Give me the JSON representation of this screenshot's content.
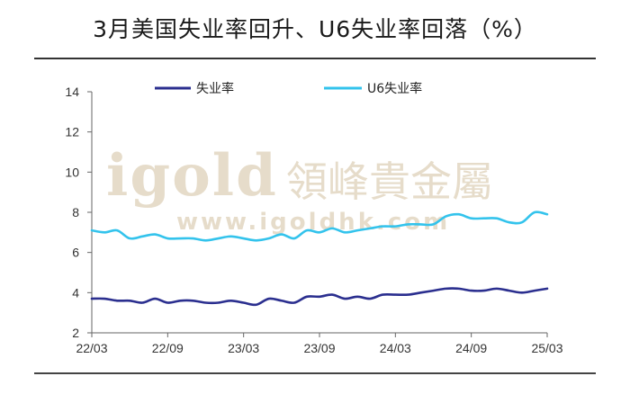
{
  "title": "3月美国失业率回升、U6失业率回落（%）",
  "watermark": {
    "brand": "igold",
    "brand_cn": "領峰貴金屬",
    "url": "www.igoldhk.com"
  },
  "colors": {
    "unemployment": "#2b2f8f",
    "u6": "#33c3ec",
    "axis": "#666666"
  },
  "chart_data": {
    "type": "line",
    "title": "3月美国失业率回升、U6失业率回落（%）",
    "xlabel": "",
    "ylabel": "",
    "ylim": [
      2,
      14
    ],
    "yticks": [
      2,
      4,
      6,
      8,
      10,
      12,
      14
    ],
    "xticks": [
      "22/03",
      "22/09",
      "23/03",
      "23/09",
      "24/03",
      "24/09",
      "25/03"
    ],
    "grid": false,
    "legend": "top",
    "x": [
      "22/03",
      "22/04",
      "22/05",
      "22/06",
      "22/07",
      "22/08",
      "22/09",
      "22/10",
      "22/11",
      "22/12",
      "23/01",
      "23/02",
      "23/03",
      "23/04",
      "23/05",
      "23/06",
      "23/07",
      "23/08",
      "23/09",
      "23/10",
      "23/11",
      "23/12",
      "24/01",
      "24/02",
      "24/03",
      "24/04",
      "24/05",
      "24/06",
      "24/07",
      "24/08",
      "24/09",
      "24/10",
      "24/11",
      "24/12",
      "25/01",
      "25/02",
      "25/03"
    ],
    "series": [
      {
        "name": "失业率",
        "values": [
          3.7,
          3.7,
          3.6,
          3.6,
          3.5,
          3.7,
          3.5,
          3.6,
          3.6,
          3.5,
          3.5,
          3.6,
          3.5,
          3.4,
          3.7,
          3.6,
          3.5,
          3.8,
          3.8,
          3.9,
          3.7,
          3.8,
          3.7,
          3.9,
          3.9,
          3.9,
          4.0,
          4.1,
          4.2,
          4.2,
          4.1,
          4.1,
          4.2,
          4.1,
          4.0,
          4.1,
          4.2
        ]
      },
      {
        "name": "U6失业率",
        "values": [
          7.1,
          7.0,
          7.1,
          6.7,
          6.8,
          6.9,
          6.7,
          6.7,
          6.7,
          6.6,
          6.7,
          6.8,
          6.7,
          6.6,
          6.7,
          6.9,
          6.7,
          7.1,
          7.0,
          7.2,
          7.0,
          7.1,
          7.2,
          7.3,
          7.3,
          7.4,
          7.4,
          7.4,
          7.8,
          7.9,
          7.7,
          7.7,
          7.7,
          7.5,
          7.5,
          8.0,
          7.9
        ]
      }
    ]
  }
}
